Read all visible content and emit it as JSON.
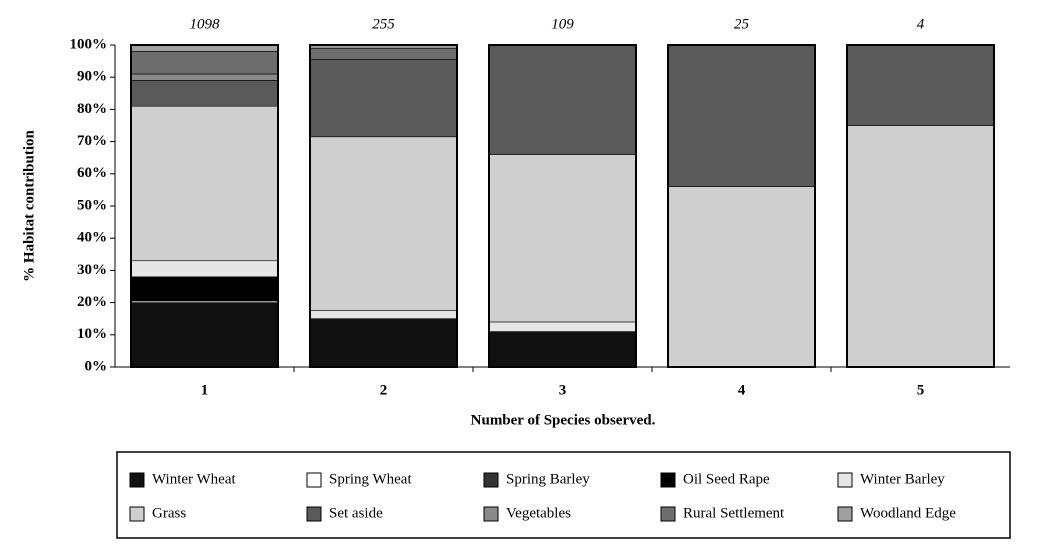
{
  "chart_data": {
    "type": "stacked_bar",
    "x_label": "Number of Species observed.",
    "y_label": "% Habitat contribution",
    "categories": [
      "1",
      "2",
      "3",
      "4",
      "5"
    ],
    "top_labels": [
      1098,
      255,
      109,
      25,
      4
    ],
    "ylim": [
      0,
      100
    ],
    "yticks": [
      {
        "value": 0,
        "label": "0%"
      },
      {
        "value": 10,
        "label": "10%"
      },
      {
        "value": 20,
        "label": "20%"
      },
      {
        "value": 30,
        "label": "30%"
      },
      {
        "value": 40,
        "label": "40%"
      },
      {
        "value": 50,
        "label": "50%"
      },
      {
        "value": 60,
        "label": "60%"
      },
      {
        "value": 70,
        "label": "70%"
      },
      {
        "value": 80,
        "label": "80%"
      },
      {
        "value": 90,
        "label": "90%"
      },
      {
        "value": 100,
        "label": "100%"
      }
    ],
    "series": [
      {
        "name": "Winter Wheat",
        "color": "#111111",
        "values": [
          20,
          15,
          11,
          0,
          0
        ]
      },
      {
        "name": "Spring Wheat",
        "color": "#ffffff",
        "values": [
          0.5,
          0,
          0,
          0,
          0
        ]
      },
      {
        "name": "Spring Barley",
        "color": "#333333",
        "values": [
          0,
          0,
          0,
          0,
          0
        ]
      },
      {
        "name": "Oil Seed Rape",
        "color": "#000000",
        "values": [
          7.5,
          0,
          0,
          0,
          0
        ]
      },
      {
        "name": "Winter Barley",
        "color": "#e6e6e6",
        "values": [
          5,
          2.5,
          3,
          0,
          0
        ]
      },
      {
        "name": "Grass",
        "color": "#cfcfcf",
        "values": [
          48,
          54,
          52,
          56,
          75
        ]
      },
      {
        "name": "Set aside",
        "color": "#5a5a5a",
        "values": [
          8,
          24,
          34,
          44,
          25
        ]
      },
      {
        "name": "Vegetables",
        "color": "#8a8a8a",
        "values": [
          2,
          0,
          0,
          0,
          0
        ]
      },
      {
        "name": "Rural Settlement",
        "color": "#6e6e6e",
        "values": [
          7,
          3.5,
          0,
          0,
          0
        ]
      },
      {
        "name": "Woodland Edge",
        "color": "#a0a0a0",
        "values": [
          2,
          1,
          0,
          0,
          0
        ]
      }
    ]
  }
}
